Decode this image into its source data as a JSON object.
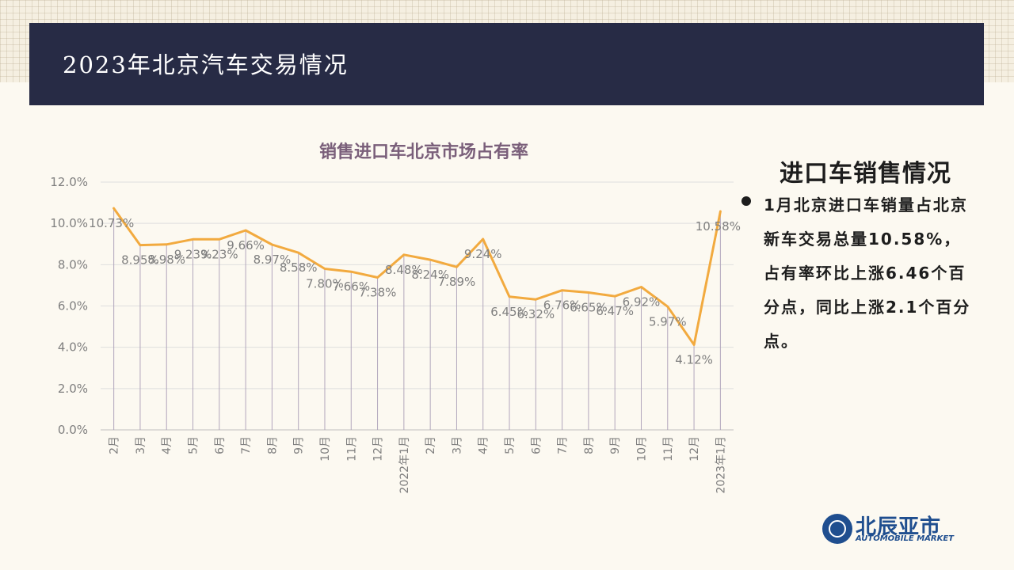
{
  "header": {
    "title": "2023年北京汽车交易情况"
  },
  "chart_data": {
    "type": "line",
    "title": "销售进口车北京市场占有率",
    "xlabel": "",
    "ylabel": "",
    "categories": [
      "2月",
      "3月",
      "4月",
      "5月",
      "6月",
      "7月",
      "8月",
      "9月",
      "10月",
      "11月",
      "12月",
      "2022年1月",
      "2月",
      "3月",
      "4月",
      "5月",
      "6月",
      "7月",
      "8月",
      "9月",
      "10月",
      "11月",
      "12月",
      "2023年1月"
    ],
    "series": [
      {
        "values": [
          10.73,
          8.95,
          8.98,
          9.23,
          9.23,
          9.66,
          8.97,
          8.58,
          7.8,
          7.66,
          7.38,
          8.48,
          8.24,
          7.89,
          9.24,
          6.45,
          6.32,
          6.76,
          6.65,
          6.47,
          6.92,
          5.97,
          4.12,
          10.58
        ],
        "labels": [
          "10.73%",
          "8.95%",
          "8.98%",
          "9.23%",
          "9.23%",
          "9.66%",
          "8.97%",
          "8.58%",
          "7.80%",
          "7.66%",
          "7.38%",
          "8.48%",
          "8.24%",
          "7.89%",
          "9.24%",
          "6.45%",
          "6.32%",
          "6.76%",
          "6.65%",
          "6.47%",
          "6.92%",
          "5.97%",
          "4.12%",
          "10.58%"
        ]
      }
    ],
    "ylim": [
      0,
      12
    ],
    "yticks": [
      "0.0%",
      "2.0%",
      "4.0%",
      "6.0%",
      "8.0%",
      "10.0%",
      "12.0%"
    ],
    "grid": true,
    "drop_lines": true,
    "line_color": "#f2aa3f",
    "label_color": "#7f7f7f"
  },
  "side": {
    "title": "进口车销售情况",
    "text": "1月北京进口车销量占北京新车交易总量10.58%，占有率环比上涨6.46个百分点，同比上涨2.1个百分点。"
  },
  "logo": {
    "cn": "北辰亚市",
    "en": "AUTOMOBILE MARKET"
  }
}
